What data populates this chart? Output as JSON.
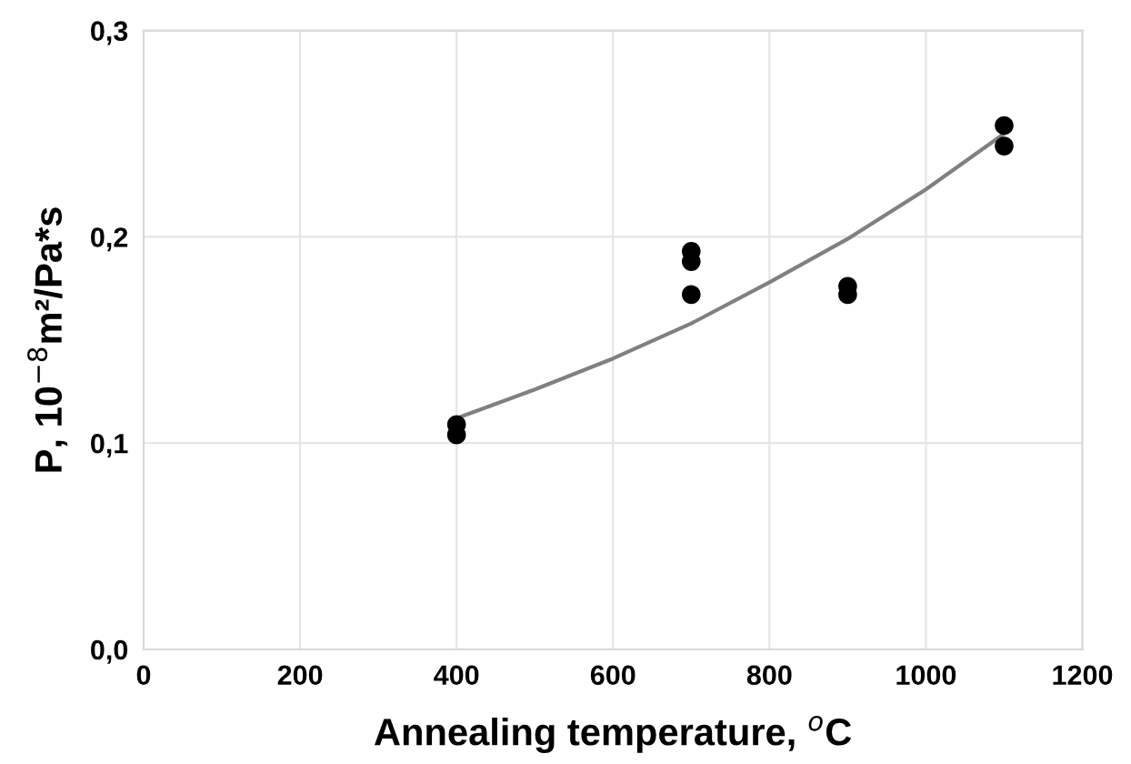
{
  "chart_data": {
    "type": "scatter",
    "xlabel": "Annealing temperature, $^{o}$C",
    "ylabel": "P, 10$^{−8}$m²/Pa*s",
    "xlim": [
      0,
      1200
    ],
    "ylim": [
      0,
      0.3
    ],
    "xticks": [
      0,
      200,
      400,
      600,
      800,
      1000,
      1200
    ],
    "yticks": [
      {
        "value": 0,
        "label": "0,0"
      },
      {
        "value": 0.1,
        "label": "0,1"
      },
      {
        "value": 0.2,
        "label": "0,2"
      },
      {
        "value": 0.3,
        "label": "0,3"
      }
    ],
    "grid": true,
    "marker": "circle",
    "series": [
      {
        "color": "#000000",
        "x": [
          400,
          400,
          700,
          700,
          700,
          900,
          900,
          1100,
          1100
        ],
        "values": [
          0.109,
          0.104,
          0.193,
          0.188,
          0.172,
          0.176,
          0.172,
          0.254,
          0.244
        ]
      },
      {
        "type": "line",
        "color": "#808080",
        "marker": "none",
        "x": [
          400,
          500,
          600,
          700,
          800,
          900,
          1000,
          1100
        ],
        "values": [
          0.112,
          0.126,
          0.141,
          0.158,
          0.178,
          0.199,
          0.223,
          0.25
        ]
      }
    ]
  }
}
